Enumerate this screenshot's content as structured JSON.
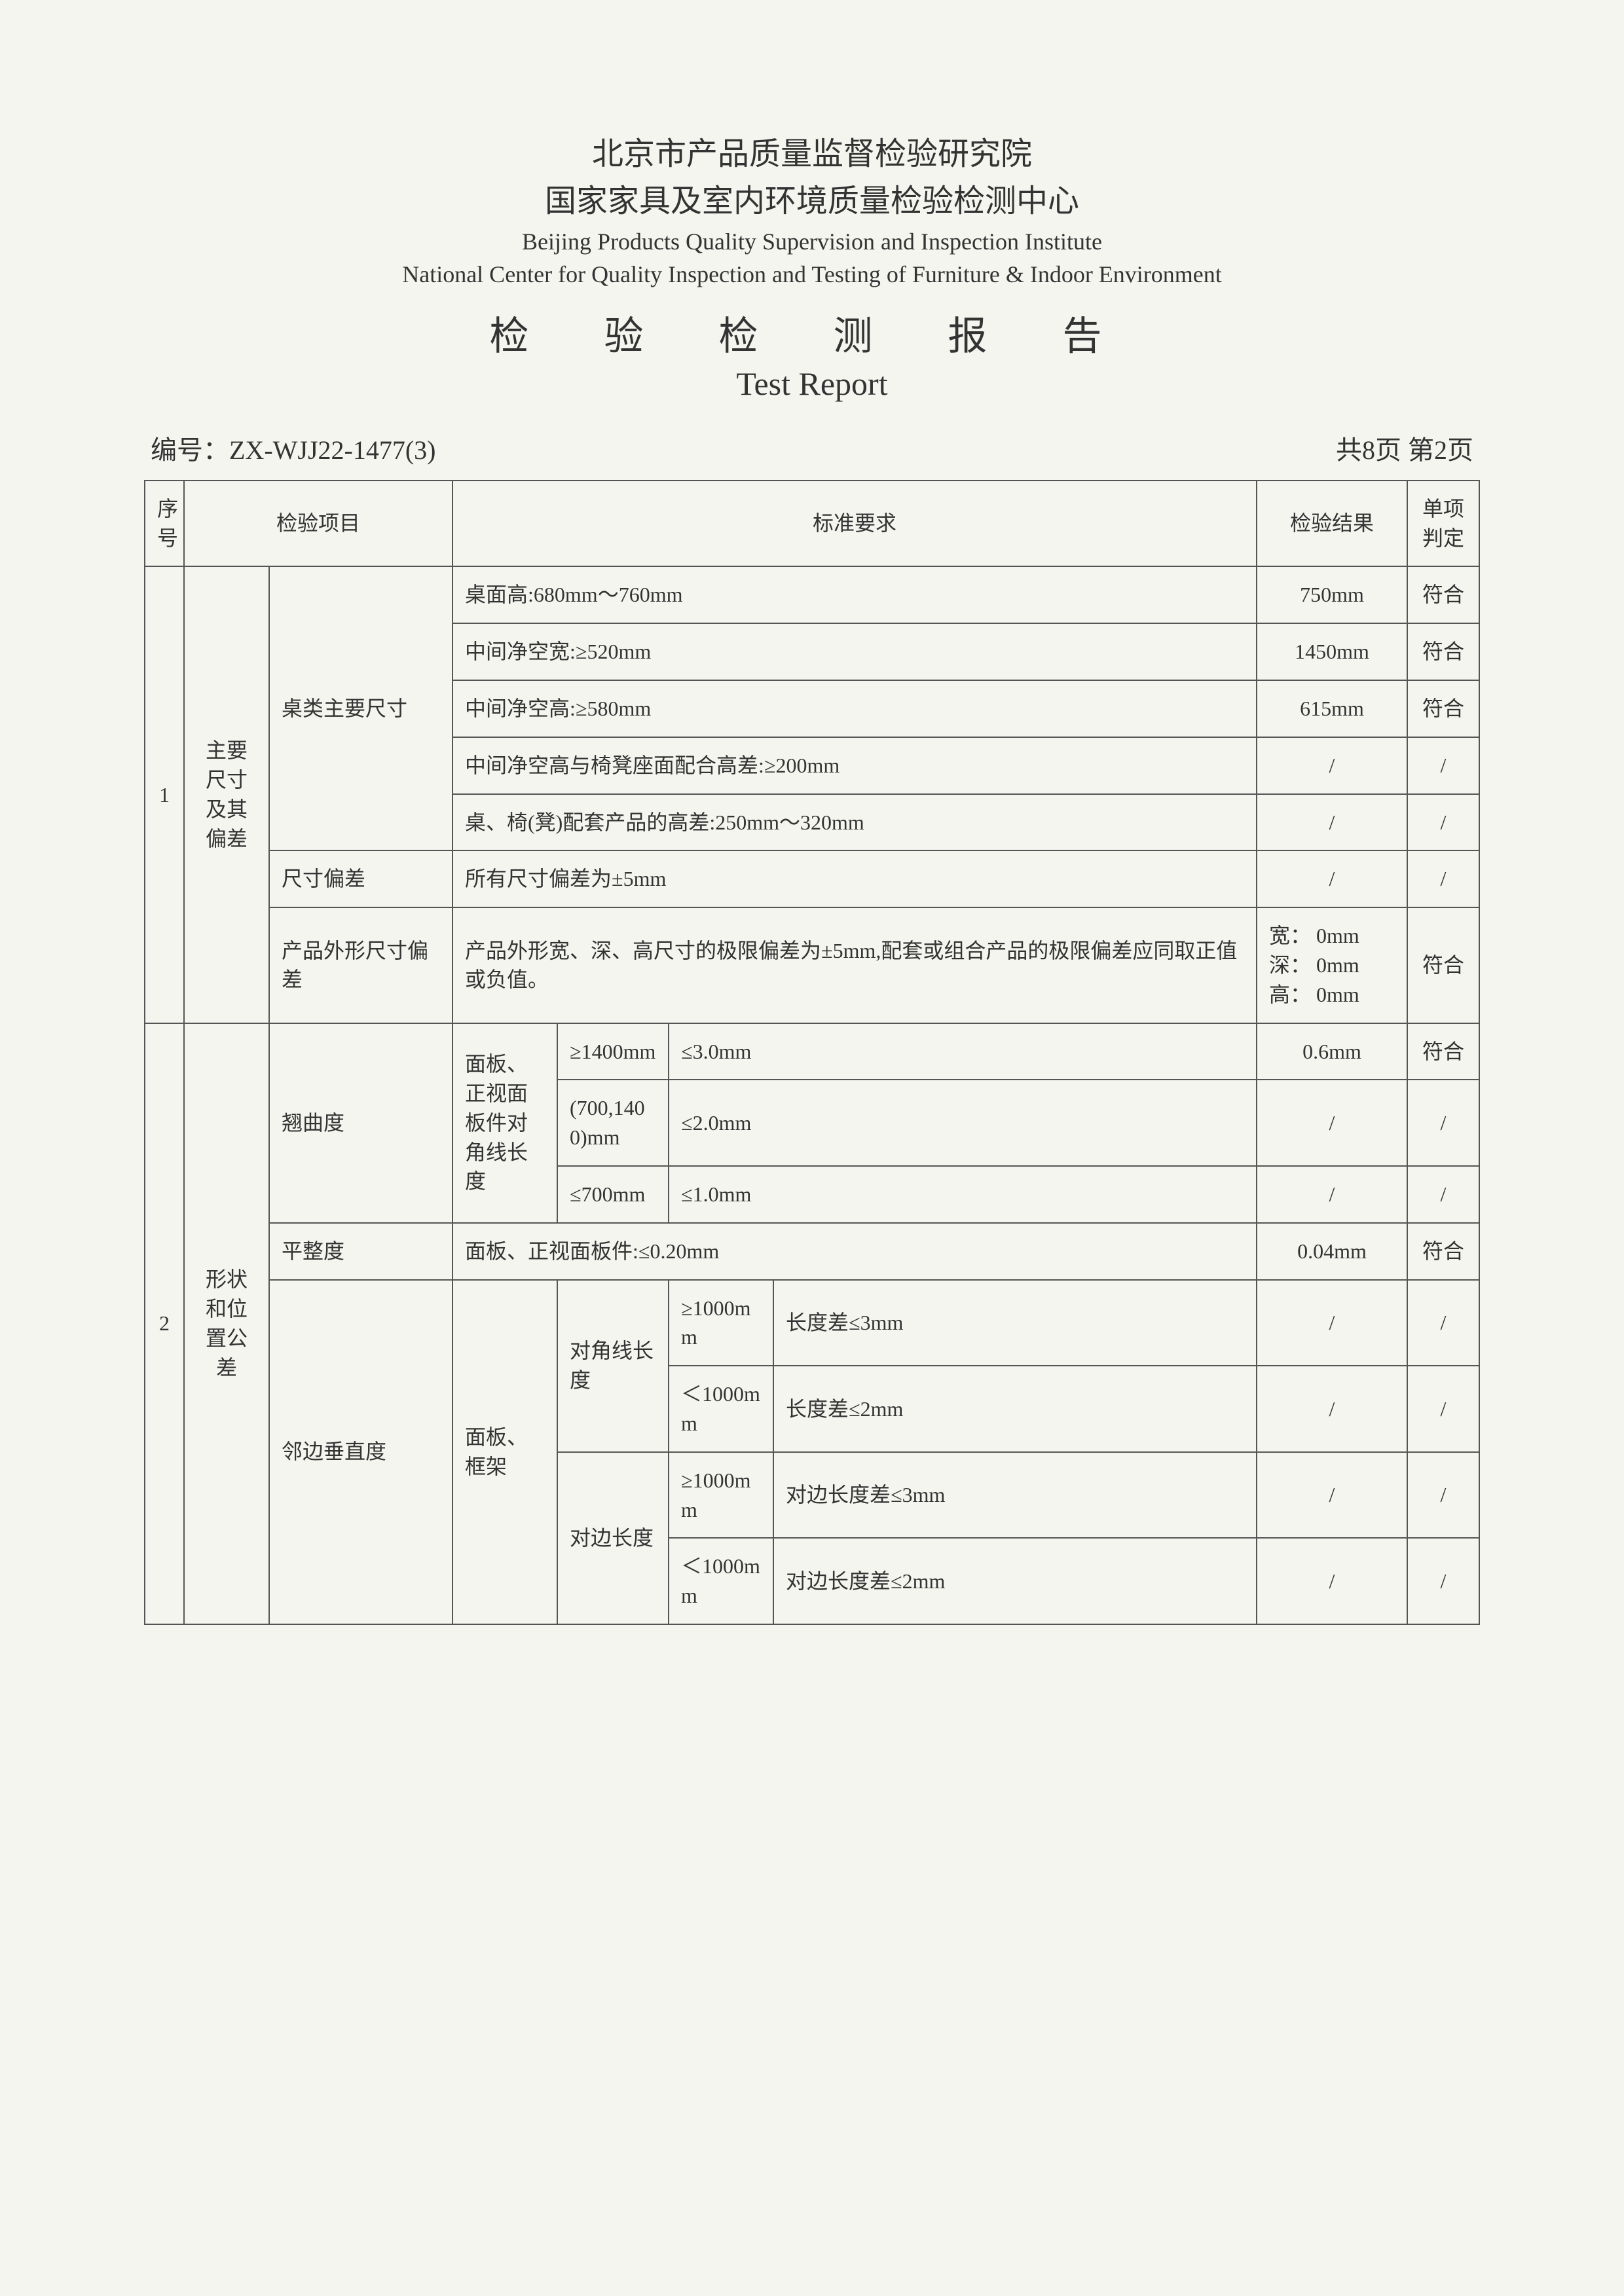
{
  "header": {
    "org_cn_line1": "北京市产品质量监督检验研究院",
    "org_cn_line2": "国家家具及室内环境质量检验检测中心",
    "org_en_line1": "Beijing Products Quality Supervision and Inspection Institute",
    "org_en_line2": "National Center for Quality Inspection and Testing of Furniture &  Indoor Environment",
    "title_cn": "检 验 检 测 报 告",
    "title_en": "Test Report"
  },
  "meta": {
    "serial_label": "编号：",
    "serial_value": "ZX-WJJ22-1477(3)",
    "page_info": "共8页  第2页"
  },
  "table_headers": {
    "seq": "序号",
    "item": "检验项目",
    "requirement": "标准要求",
    "result": "检验结果",
    "judge": "单项判定"
  },
  "section1": {
    "seq": "1",
    "group": "主要尺寸及其偏差",
    "sub_a": "桌类主要尺寸",
    "sub_b": "尺寸偏差",
    "sub_c": "产品外形尺寸偏差",
    "rows": [
      {
        "req": "桌面高:680mm～760mm",
        "result": "750mm",
        "judge": "符合"
      },
      {
        "req": "中间净空宽:≥520mm",
        "result": "1450mm",
        "judge": "符合"
      },
      {
        "req": "中间净空高:≥580mm",
        "result": "615mm",
        "judge": "符合"
      },
      {
        "req": "中间净空高与椅凳座面配合高差:≥200mm",
        "result": "/",
        "judge": "/"
      },
      {
        "req": "桌、椅(凳)配套产品的高差:250mm～320mm",
        "result": "/",
        "judge": "/"
      }
    ],
    "row_b": {
      "req": "所有尺寸偏差为±5mm",
      "result": "/",
      "judge": "/"
    },
    "row_c": {
      "req": "产品外形宽、深、高尺寸的极限偏差为±5mm,配套或组合产品的极限偏差应同取正值或负值。",
      "result": "宽： 0mm\n深： 0mm\n高： 0mm",
      "judge": "符合"
    }
  },
  "section2": {
    "seq": "2",
    "group": "形状和位置公差",
    "warp": {
      "label": "翘曲度",
      "sub_label": "面板、正视面板件对角线长度",
      "rows": [
        {
          "cond": "≥1400mm",
          "limit": "≤3.0mm",
          "result": "0.6mm",
          "judge": "符合"
        },
        {
          "cond": "(700,1400)mm",
          "limit": "≤2.0mm",
          "result": "/",
          "judge": "/"
        },
        {
          "cond": "≤700mm",
          "limit": "≤1.0mm",
          "result": "/",
          "judge": "/"
        }
      ]
    },
    "flat": {
      "label": "平整度",
      "req": "面板、正视面板件:≤0.20mm",
      "result": "0.04mm",
      "judge": "符合"
    },
    "perp": {
      "label": "邻边垂直度",
      "sub_label": "面板、框架",
      "diag_label": "对角线长度",
      "opp_label": "对边长度",
      "rows": [
        {
          "cond": "≥1000mm",
          "limit": "长度差≤3mm",
          "result": "/",
          "judge": "/"
        },
        {
          "cond": "＜1000mm",
          "limit": "长度差≤2mm",
          "result": "/",
          "judge": "/"
        },
        {
          "cond": "≥1000mm",
          "limit": "对边长度差≤3mm",
          "result": "/",
          "judge": "/"
        },
        {
          "cond": "＜1000mm",
          "limit": "对边长度差≤2mm",
          "result": "/",
          "judge": "/"
        }
      ]
    }
  }
}
